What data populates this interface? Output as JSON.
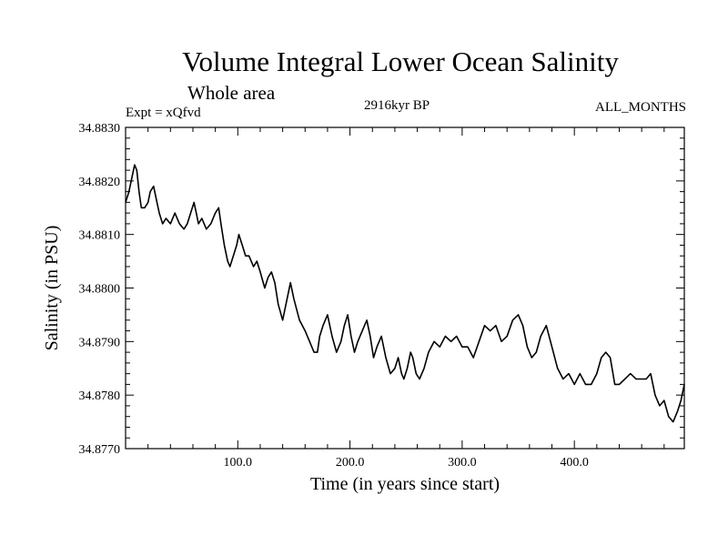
{
  "chart_data": {
    "type": "line",
    "title": "Volume Integral Lower Ocean Salinity",
    "subtitle": "Whole area",
    "experiment_label": "Expt = xQfvd",
    "period_label": "2916kyr BP",
    "months_label": "ALL_MONTHS",
    "xlabel": "Time (in years since start)",
    "ylabel": "Salinity (in PSU)",
    "xlim": [
      0,
      498
    ],
    "ylim": [
      34.877,
      34.883
    ],
    "x_ticks": [
      100,
      200,
      300,
      400
    ],
    "x_tick_labels": [
      "100.0",
      "200.0",
      "300.0",
      "400.0"
    ],
    "y_ticks": [
      34.877,
      34.878,
      34.879,
      34.88,
      34.881,
      34.882,
      34.883
    ],
    "y_tick_labels": [
      "34.8770",
      "34.8780",
      "34.8790",
      "34.8800",
      "34.8810",
      "34.8820",
      "34.8830"
    ],
    "grid": false,
    "series": [
      {
        "name": "Salinity",
        "color": "#000000",
        "x": [
          0,
          3,
          6,
          8,
          10,
          12,
          14,
          17,
          20,
          22,
          25,
          28,
          30,
          33,
          36,
          40,
          44,
          48,
          52,
          55,
          58,
          61,
          63,
          65,
          68,
          72,
          76,
          80,
          83,
          85,
          88,
          91,
          93,
          96,
          99,
          101,
          104,
          107,
          110,
          114,
          117,
          120,
          124,
          127,
          130,
          133,
          136,
          140,
          144,
          147,
          150,
          155,
          160,
          164,
          168,
          171,
          173,
          176,
          180,
          184,
          188,
          192,
          195,
          198,
          201,
          204,
          207,
          211,
          215,
          218,
          221,
          224,
          228,
          232,
          236,
          240,
          243,
          246,
          248,
          251,
          254,
          256,
          259,
          262,
          266,
          270,
          275,
          280,
          285,
          290,
          295,
          300,
          305,
          310,
          315,
          320,
          325,
          330,
          335,
          340,
          345,
          350,
          354,
          358,
          362,
          366,
          370,
          375,
          380,
          385,
          390,
          395,
          400,
          405,
          410,
          415,
          420,
          424,
          428,
          432,
          436,
          440,
          445,
          450,
          455,
          460,
          464,
          468,
          472,
          476,
          480,
          484,
          488,
          492,
          495,
          498
        ],
        "y": [
          34.8816,
          34.8818,
          34.8821,
          34.8823,
          34.8822,
          34.8818,
          34.8815,
          34.8815,
          34.8816,
          34.8818,
          34.8819,
          34.8816,
          34.8814,
          34.8812,
          34.8813,
          34.8812,
          34.8814,
          34.8812,
          34.8811,
          34.8812,
          34.8814,
          34.8816,
          34.8814,
          34.8812,
          34.8813,
          34.8811,
          34.8812,
          34.8814,
          34.8815,
          34.8812,
          34.8808,
          34.8805,
          34.8804,
          34.8806,
          34.8808,
          34.881,
          34.8808,
          34.8806,
          34.8806,
          34.8804,
          34.8805,
          34.8803,
          34.88,
          34.8802,
          34.8803,
          34.8801,
          34.8797,
          34.8794,
          34.8798,
          34.8801,
          34.8798,
          34.8794,
          34.8792,
          34.879,
          34.8788,
          34.8788,
          34.8791,
          34.8793,
          34.8795,
          34.8791,
          34.8788,
          34.879,
          34.8793,
          34.8795,
          34.8791,
          34.8788,
          34.879,
          34.8792,
          34.8794,
          34.8791,
          34.8787,
          34.8789,
          34.8791,
          34.8787,
          34.8784,
          34.8785,
          34.8787,
          34.8784,
          34.8783,
          34.8785,
          34.8788,
          34.8787,
          34.8784,
          34.8783,
          34.8785,
          34.8788,
          34.879,
          34.8789,
          34.8791,
          34.879,
          34.8791,
          34.8789,
          34.8789,
          34.8787,
          34.879,
          34.8793,
          34.8792,
          34.8793,
          34.879,
          34.8791,
          34.8794,
          34.8795,
          34.8793,
          34.8789,
          34.8787,
          34.8788,
          34.8791,
          34.8793,
          34.8789,
          34.8785,
          34.8783,
          34.8784,
          34.8782,
          34.8784,
          34.8782,
          34.8782,
          34.8784,
          34.8787,
          34.8788,
          34.8787,
          34.8782,
          34.8782,
          34.8783,
          34.8784,
          34.8783,
          34.8783,
          34.8783,
          34.8784,
          34.878,
          34.8778,
          34.8779,
          34.8776,
          34.8775,
          34.8777,
          34.8779,
          34.8782
        ]
      }
    ]
  }
}
